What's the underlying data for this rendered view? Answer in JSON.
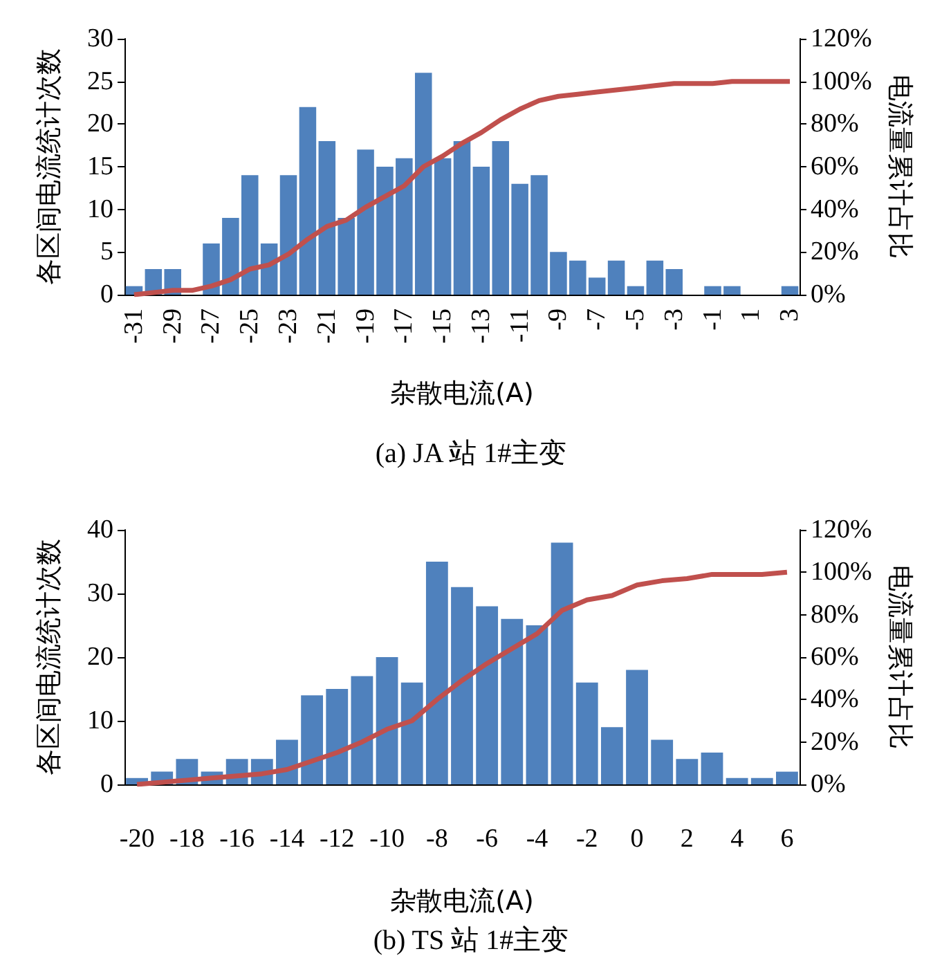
{
  "chart_data": [
    {
      "type": "bar",
      "title": "(a) JA 站 1#主变",
      "xlabel": "杂散电流(A)",
      "ylabel": "各区间电流统计次数",
      "y2label": "电流量累计占比",
      "categories": [
        "-31",
        null,
        "-29",
        null,
        "-27",
        null,
        "-25",
        null,
        "-23",
        null,
        "-21",
        null,
        "-19",
        null,
        "-17",
        null,
        "-15",
        null,
        "-13",
        null,
        "-11",
        null,
        "-9",
        null,
        "-7",
        null,
        "-5",
        null,
        "-3",
        null,
        "-1",
        null,
        "1",
        null,
        "3"
      ],
      "series": [
        {
          "color": "#4f81bd",
          "values": [
            1,
            3,
            3,
            0,
            6,
            9,
            14,
            6,
            14,
            22,
            18,
            9,
            17,
            15,
            16,
            26,
            16,
            18,
            15,
            18,
            13,
            14,
            5,
            4,
            2,
            4,
            1,
            4,
            3,
            0,
            1,
            1,
            0,
            0,
            1
          ]
        },
        {
          "type": "line",
          "axis": "y2",
          "color": "#c0504d",
          "values": [
            0,
            1,
            2,
            2,
            4,
            7,
            12,
            14,
            19,
            26,
            32,
            35,
            41,
            46,
            51,
            60,
            65,
            71,
            76,
            82,
            87,
            91,
            93,
            94,
            95,
            96,
            97,
            98,
            99,
            99,
            99,
            100,
            100,
            100,
            100
          ]
        }
      ],
      "ylim": [
        0,
        30
      ],
      "yticks": [
        0,
        5,
        10,
        15,
        20,
        25,
        30
      ],
      "y2lim": [
        0,
        120
      ],
      "y2ticks": [
        {
          "value": 0,
          "label": "0%"
        },
        {
          "value": 20,
          "label": "20%"
        },
        {
          "value": 40,
          "label": "40%"
        },
        {
          "value": 60,
          "label": "60%"
        },
        {
          "value": 80,
          "label": "80%"
        },
        {
          "value": 100,
          "label": "100%"
        },
        {
          "value": 120,
          "label": "120%"
        }
      ]
    },
    {
      "type": "bar",
      "title": "(b) TS 站 1#主变",
      "xlabel": "杂散电流(A)",
      "ylabel": "各区间电流统计次数",
      "y2label": "电流量累计占比",
      "categories": [
        "-20",
        null,
        "-18",
        null,
        "-16",
        null,
        "-14",
        null,
        "-12",
        null,
        "-10",
        null,
        "-8",
        null,
        "-6",
        null,
        "-4",
        null,
        "-2",
        null,
        "0",
        null,
        "2",
        null,
        "4",
        null,
        "6"
      ],
      "series": [
        {
          "color": "#4f81bd",
          "values": [
            1,
            2,
            4,
            2,
            4,
            4,
            7,
            14,
            15,
            17,
            20,
            16,
            35,
            31,
            28,
            26,
            25,
            38,
            16,
            9,
            18,
            7,
            4,
            5,
            1,
            1,
            2
          ]
        },
        {
          "type": "line",
          "axis": "y2",
          "color": "#c0504d",
          "values": [
            0,
            1,
            2,
            3,
            4,
            5,
            7,
            11,
            15,
            20,
            26,
            30,
            40,
            49,
            57,
            64,
            71,
            82,
            87,
            89,
            94,
            96,
            97,
            99,
            99,
            99,
            100
          ]
        }
      ],
      "ylim": [
        0,
        40
      ],
      "yticks": [
        0,
        10,
        20,
        30,
        40
      ],
      "y2lim": [
        0,
        120
      ],
      "y2ticks": [
        {
          "value": 0,
          "label": "0%"
        },
        {
          "value": 20,
          "label": "20%"
        },
        {
          "value": 40,
          "label": "40%"
        },
        {
          "value": 60,
          "label": "60%"
        },
        {
          "value": 80,
          "label": "80%"
        },
        {
          "value": 100,
          "label": "100%"
        },
        {
          "value": 120,
          "label": "120%"
        }
      ]
    }
  ]
}
